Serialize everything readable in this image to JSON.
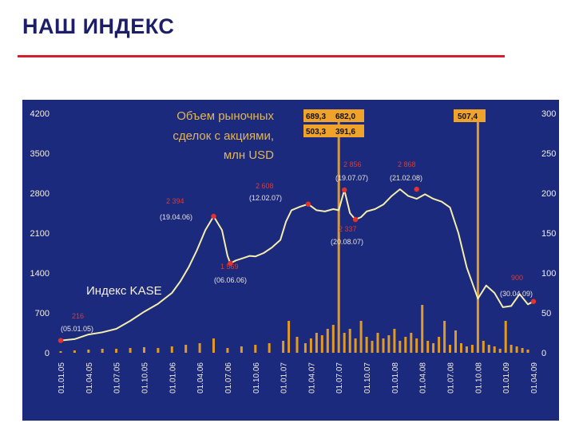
{
  "page": {
    "title": "НАШ ИНДЕКС"
  },
  "colors": {
    "panel": "#1b2a7c",
    "index_line": "#f4eeaa",
    "volume_bars": "#e39a25",
    "markers": "#e5322d",
    "title": "#1c1f66",
    "rule": "#d4202c"
  },
  "chart_data": {
    "type": "line",
    "title": "",
    "legend": {
      "volume_label_lines": [
        "Объем рыночных",
        "сделок с акциями,",
        "млн USD"
      ],
      "index_label": "Индекс KASE"
    },
    "axes": {
      "y_left": {
        "min": 0,
        "max": 4200,
        "ticks": [
          0,
          700,
          1400,
          2100,
          2800,
          3500,
          4200
        ]
      },
      "y_right": {
        "min": 0,
        "max": 300,
        "ticks": [
          0,
          50,
          100,
          150,
          200,
          250,
          300
        ]
      },
      "x_ticks": [
        "01.01.05",
        "01.04.05",
        "01.07.05",
        "01.10.05",
        "01.01.06",
        "01.04.06",
        "01.07.06",
        "01.10.06",
        "01.01.07",
        "01.04.07",
        "01.07.07",
        "01.10.07",
        "01.01.08",
        "01.04.08",
        "01.07.08",
        "01.10.08",
        "01.01.09",
        "01.04.09"
      ]
    },
    "series": [
      {
        "name": "Индекс KASE",
        "axis": "left",
        "x": [
          0,
          0.5,
          1,
          1.5,
          2,
          2.5,
          3,
          3.5,
          4,
          4.3,
          4.6,
          4.9,
          5.2,
          5.5,
          5.8,
          6.0,
          6.1,
          6.3,
          6.5,
          6.8,
          7.0,
          7.3,
          7.6,
          7.9,
          8.1,
          8.3,
          8.6,
          8.9,
          9.2,
          9.5,
          9.8,
          10.0,
          10.2,
          10.4,
          10.6,
          10.8,
          11.0,
          11.3,
          11.6,
          11.9,
          12.2,
          12.5,
          12.8,
          13.1,
          13.4,
          13.7,
          14.0,
          14.3,
          14.6,
          15.0,
          15.3,
          15.6,
          15.9,
          16.2,
          16.5,
          16.8,
          17.0
        ],
        "values": [
          216,
          240,
          320,
          360,
          420,
          560,
          720,
          860,
          1050,
          1250,
          1500,
          1800,
          2150,
          2394,
          2150,
          1700,
          1569,
          1620,
          1650,
          1700,
          1690,
          1750,
          1850,
          1980,
          2300,
          2500,
          2560,
          2608,
          2500,
          2480,
          2520,
          2500,
          2856,
          2450,
          2337,
          2380,
          2480,
          2520,
          2600,
          2750,
          2868,
          2750,
          2700,
          2780,
          2700,
          2650,
          2550,
          2100,
          1500,
          950,
          1180,
          1050,
          800,
          820,
          1030,
          850,
          900
        ]
      },
      {
        "name": "Объем рыночных сделок с акциями, млн USD",
        "axis": "right",
        "x": [
          0,
          0.5,
          1,
          1.5,
          2,
          2.5,
          3,
          3.5,
          4,
          4.5,
          5,
          5.5,
          6,
          6.5,
          7,
          7.5,
          8,
          8.2,
          8.5,
          8.8,
          9,
          9.2,
          9.4,
          9.6,
          9.8,
          10,
          10.2,
          10.4,
          10.6,
          10.8,
          11,
          11.2,
          11.4,
          11.6,
          11.8,
          12,
          12.2,
          12.4,
          12.6,
          12.8,
          13,
          13.2,
          13.4,
          13.6,
          13.8,
          14,
          14.2,
          14.4,
          14.6,
          14.8,
          15,
          15.2,
          15.4,
          15.6,
          15.8,
          16,
          16.2,
          16.4,
          16.6,
          16.8
        ],
        "values": [
          2,
          3,
          4,
          5,
          5,
          6,
          7,
          6,
          8,
          10,
          12,
          18,
          6,
          8,
          10,
          12,
          15,
          40,
          20,
          12,
          18,
          25,
          22,
          30,
          35,
          303,
          25,
          30,
          18,
          40,
          20,
          15,
          25,
          18,
          22,
          30,
          15,
          20,
          25,
          18,
          60,
          15,
          12,
          20,
          40,
          10,
          28,
          12,
          8,
          10,
          302,
          15,
          10,
          8,
          5,
          40,
          10,
          8,
          6,
          4
        ]
      }
    ],
    "annotations": [
      {
        "value": "216",
        "date": "(05.01.05)"
      },
      {
        "value": "2 394",
        "date": "(19.04.06)"
      },
      {
        "value": "1 569",
        "date": "(06.06.06)"
      },
      {
        "value": "2 608",
        "date": "(12.02.07)"
      },
      {
        "value": "2 856",
        "date": "(19.07.07)"
      },
      {
        "value": "2 337",
        "date": "(20.08.07)"
      },
      {
        "value": "2 868",
        "date": "(21.02.08)"
      },
      {
        "value": "900",
        "date": "(30.04.09)"
      }
    ],
    "volume_callouts": [
      "689,3",
      "682,0",
      "503,3",
      "391,6",
      "507,4"
    ]
  }
}
